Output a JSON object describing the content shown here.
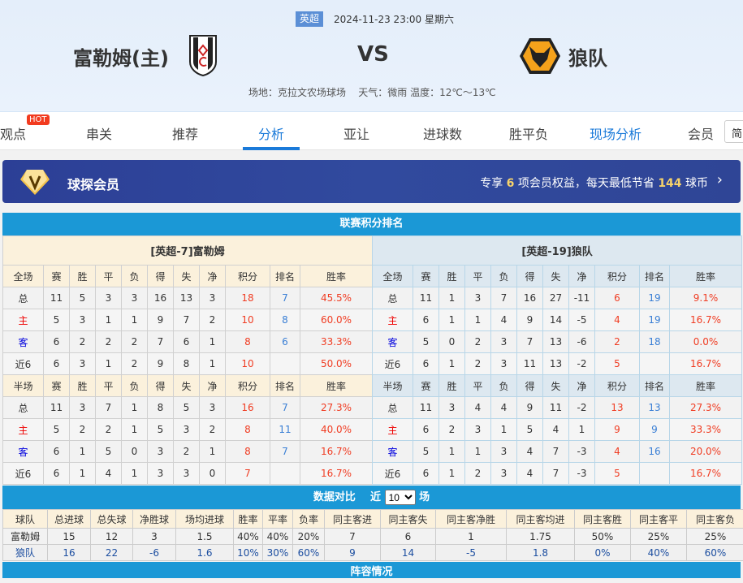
{
  "match": {
    "league": "英超",
    "datetime": "2024-11-23 23:00 星期六",
    "home": "富勒姆(主)",
    "vs": "VS",
    "away": "狼队",
    "venue": "场地：克拉文农场球场",
    "weather": "天气：微雨 温度：12℃～13℃"
  },
  "nav": {
    "items": [
      "观点",
      "串关",
      "推荐",
      "分析",
      "亚让",
      "进球数",
      "胜平负",
      "现场分析",
      "会员"
    ],
    "hot": "HOT",
    "active": "分析",
    "lang": "简"
  },
  "banner": {
    "title": "球探会员",
    "p1": "专享",
    "n1": "6",
    "p2": "项会员权益，每天最低节省",
    "n2": "144",
    "p3": "球币"
  },
  "standings": {
    "title": "联赛积分排名",
    "home": {
      "title": "[英超-7]富勒姆",
      "full_header": [
        "全场",
        "赛",
        "胜",
        "平",
        "负",
        "得",
        "失",
        "净",
        "积分",
        "排名",
        "胜率"
      ],
      "full": [
        [
          "总",
          "11",
          "5",
          "3",
          "3",
          "16",
          "13",
          "3",
          "18",
          "7",
          "45.5%"
        ],
        [
          "主",
          "5",
          "3",
          "1",
          "1",
          "9",
          "7",
          "2",
          "10",
          "8",
          "60.0%"
        ],
        [
          "客",
          "6",
          "2",
          "2",
          "2",
          "7",
          "6",
          "1",
          "8",
          "6",
          "33.3%"
        ],
        [
          "近6",
          "6",
          "3",
          "1",
          "2",
          "9",
          "8",
          "1",
          "10",
          "",
          "50.0%"
        ]
      ],
      "half_header": [
        "半场",
        "赛",
        "胜",
        "平",
        "负",
        "得",
        "失",
        "净",
        "积分",
        "排名",
        "胜率"
      ],
      "half": [
        [
          "总",
          "11",
          "3",
          "7",
          "1",
          "8",
          "5",
          "3",
          "16",
          "7",
          "27.3%"
        ],
        [
          "主",
          "5",
          "2",
          "2",
          "1",
          "5",
          "3",
          "2",
          "8",
          "11",
          "40.0%"
        ],
        [
          "客",
          "6",
          "1",
          "5",
          "0",
          "3",
          "2",
          "1",
          "8",
          "7",
          "16.7%"
        ],
        [
          "近6",
          "6",
          "1",
          "4",
          "1",
          "3",
          "3",
          "0",
          "7",
          "",
          "16.7%"
        ]
      ]
    },
    "away": {
      "title": "[英超-19]狼队",
      "full_header": [
        "全场",
        "赛",
        "胜",
        "平",
        "负",
        "得",
        "失",
        "净",
        "积分",
        "排名",
        "胜率"
      ],
      "full": [
        [
          "总",
          "11",
          "1",
          "3",
          "7",
          "16",
          "27",
          "-11",
          "6",
          "19",
          "9.1%"
        ],
        [
          "主",
          "6",
          "1",
          "1",
          "4",
          "9",
          "14",
          "-5",
          "4",
          "19",
          "16.7%"
        ],
        [
          "客",
          "5",
          "0",
          "2",
          "3",
          "7",
          "13",
          "-6",
          "2",
          "18",
          "0.0%"
        ],
        [
          "近6",
          "6",
          "1",
          "2",
          "3",
          "11",
          "13",
          "-2",
          "5",
          "",
          "16.7%"
        ]
      ],
      "half_header": [
        "半场",
        "赛",
        "胜",
        "平",
        "负",
        "得",
        "失",
        "净",
        "积分",
        "排名",
        "胜率"
      ],
      "half": [
        [
          "总",
          "11",
          "3",
          "4",
          "4",
          "9",
          "11",
          "-2",
          "13",
          "13",
          "27.3%"
        ],
        [
          "主",
          "6",
          "2",
          "3",
          "1",
          "5",
          "4",
          "1",
          "9",
          "9",
          "33.3%"
        ],
        [
          "客",
          "5",
          "1",
          "1",
          "3",
          "4",
          "7",
          "-3",
          "4",
          "16",
          "20.0%"
        ],
        [
          "近6",
          "6",
          "1",
          "2",
          "3",
          "4",
          "7",
          "-3",
          "5",
          "",
          "16.7%"
        ]
      ]
    }
  },
  "compare": {
    "title": "数据对比",
    "near": "近",
    "count": "10",
    "unit": "场",
    "header": [
      "球队",
      "总进球",
      "总失球",
      "净胜球",
      "场均进球",
      "胜率",
      "平率",
      "负率",
      "同主客进",
      "同主客失",
      "同主客净胜",
      "同主客均进",
      "同主客胜",
      "同主客平",
      "同主客负"
    ],
    "rows": [
      [
        "富勒姆",
        "15",
        "12",
        "3",
        "1.5",
        "40%",
        "40%",
        "20%",
        "7",
        "6",
        "1",
        "1.75",
        "50%",
        "25%",
        "25%"
      ],
      [
        "狼队",
        "16",
        "22",
        "-6",
        "1.6",
        "10%",
        "30%",
        "60%",
        "9",
        "14",
        "-5",
        "1.8",
        "0%",
        "40%",
        "60%"
      ]
    ]
  },
  "next_section": "阵容情况"
}
